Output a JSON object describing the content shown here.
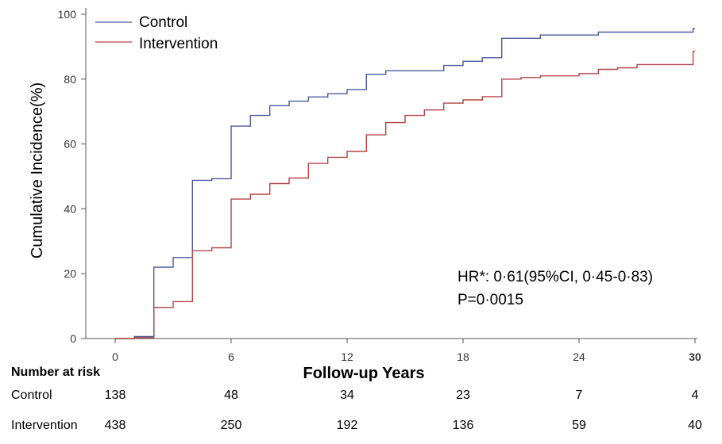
{
  "chart_data": {
    "type": "line",
    "step": true,
    "ylabel": "Cumulative Incidence(%)",
    "xlabel": "Follow-up Years",
    "xlim": [
      0,
      30
    ],
    "ylim": [
      0,
      100
    ],
    "x_ticks": [
      "0",
      "6",
      "12",
      "18",
      "24",
      "30"
    ],
    "y_ticks": [
      "0",
      "20",
      "40",
      "60",
      "80",
      "100"
    ],
    "grid": false,
    "legend_position": "top-left",
    "series": [
      {
        "name": "Control",
        "color": "#4a5a9c",
        "points": [
          [
            0,
            0
          ],
          [
            1,
            0
          ],
          [
            1,
            0.6
          ],
          [
            2,
            0.6
          ],
          [
            2,
            22
          ],
          [
            3,
            22
          ],
          [
            3,
            25
          ],
          [
            4,
            25
          ],
          [
            4,
            48.8
          ],
          [
            5,
            48.8
          ],
          [
            5,
            49.3
          ],
          [
            6,
            49.3
          ],
          [
            6,
            65.5
          ],
          [
            7,
            65.5
          ],
          [
            7,
            68.8
          ],
          [
            8,
            68.8
          ],
          [
            8,
            71.8
          ],
          [
            9,
            71.8
          ],
          [
            9,
            73.2
          ],
          [
            10,
            73.2
          ],
          [
            10,
            74.5
          ],
          [
            11,
            74.5
          ],
          [
            11,
            75.5
          ],
          [
            12,
            75.5
          ],
          [
            12,
            76.8
          ],
          [
            13,
            76.8
          ],
          [
            13,
            81.5
          ],
          [
            14,
            81.5
          ],
          [
            14,
            82.6
          ],
          [
            17,
            82.6
          ],
          [
            17,
            84.2
          ],
          [
            18,
            84.2
          ],
          [
            18,
            85.5
          ],
          [
            19,
            85.5
          ],
          [
            19,
            86.6
          ],
          [
            20,
            86.6
          ],
          [
            20,
            92.6
          ],
          [
            22,
            92.6
          ],
          [
            22,
            93.6
          ],
          [
            25,
            93.6
          ],
          [
            25,
            94.5
          ],
          [
            29.9,
            94.5
          ],
          [
            29.9,
            95.6
          ],
          [
            30,
            95.6
          ]
        ]
      },
      {
        "name": "Intervention",
        "color": "#b54545",
        "points": [
          [
            0,
            0
          ],
          [
            1,
            0
          ],
          [
            1,
            0.3
          ],
          [
            2,
            0.3
          ],
          [
            2,
            9.6
          ],
          [
            3,
            9.6
          ],
          [
            3,
            11.4
          ],
          [
            4,
            11.4
          ],
          [
            4,
            27.1
          ],
          [
            5,
            27.1
          ],
          [
            5,
            28
          ],
          [
            6,
            28
          ],
          [
            6,
            43
          ],
          [
            7,
            43
          ],
          [
            7,
            44.5
          ],
          [
            8,
            44.5
          ],
          [
            8,
            47.8
          ],
          [
            9,
            47.8
          ],
          [
            9,
            49.5
          ],
          [
            10,
            49.5
          ],
          [
            10,
            54
          ],
          [
            11,
            54
          ],
          [
            11,
            55.9
          ],
          [
            12,
            55.9
          ],
          [
            12,
            57.7
          ],
          [
            13,
            57.7
          ],
          [
            13,
            62.8
          ],
          [
            14,
            62.8
          ],
          [
            14,
            66.6
          ],
          [
            15,
            66.6
          ],
          [
            15,
            68.8
          ],
          [
            16,
            68.8
          ],
          [
            16,
            70.5
          ],
          [
            17,
            70.5
          ],
          [
            17,
            72.6
          ],
          [
            18,
            72.6
          ],
          [
            18,
            73.6
          ],
          [
            19,
            73.6
          ],
          [
            19,
            74.6
          ],
          [
            20,
            74.6
          ],
          [
            20,
            80
          ],
          [
            21,
            80
          ],
          [
            21,
            80.5
          ],
          [
            22,
            80.5
          ],
          [
            22,
            81
          ],
          [
            24,
            81
          ],
          [
            24,
            81.7
          ],
          [
            25,
            81.7
          ],
          [
            25,
            83
          ],
          [
            26,
            83
          ],
          [
            26,
            83.5
          ],
          [
            27,
            83.5
          ],
          [
            27,
            84.5
          ],
          [
            29.9,
            84.5
          ],
          [
            29.9,
            88.5
          ],
          [
            30,
            88.5
          ]
        ]
      }
    ],
    "annotation": {
      "line1": "HR*: 0·61(95%CI, 0·45-0·83)",
      "line2": "P=0·0015"
    },
    "risk_table": {
      "header": "Number at  risk",
      "rows": [
        {
          "label": "Control",
          "values": [
            "138",
            "48",
            "34",
            "23",
            "7",
            "4"
          ]
        },
        {
          "label": "Intervention",
          "values": [
            "438",
            "250",
            "192",
            "136",
            "59",
            "40"
          ]
        }
      ]
    }
  }
}
